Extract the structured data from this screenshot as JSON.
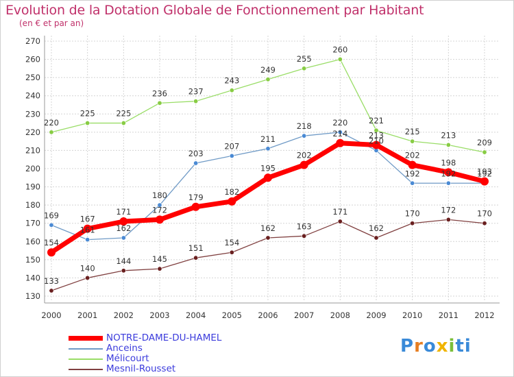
{
  "title": "Evolution de la Dotation Globale de Fonctionnement par Habitant",
  "subtitle": "(en € et par an)",
  "logo": "Proxiti",
  "colors": {
    "title": "#c0306a",
    "grid": "#d0d0d0",
    "axis_text": "#333333"
  },
  "chart_data": {
    "type": "line",
    "title": "Evolution de la Dotation Globale de Fonctionnement par Habitant",
    "subtitle": "(en € et par an)",
    "xlabel": "",
    "ylabel": "",
    "x": [
      "2000",
      "2001",
      "2002",
      "2003",
      "2004",
      "2005",
      "2006",
      "2007",
      "2008",
      "2009",
      "2010",
      "2011",
      "2012"
    ],
    "ylim": [
      130,
      270
    ],
    "yticks": [
      130,
      140,
      150,
      160,
      170,
      180,
      190,
      200,
      210,
      220,
      230,
      240,
      250,
      260,
      270
    ],
    "grid": true,
    "legend_position": "bottom-left",
    "series": [
      {
        "name": "NOTRE-DAME-DU-HAMEL",
        "color": "#ff0000",
        "width": 7,
        "marker": "#ff0000",
        "values": [
          154,
          167,
          171,
          172,
          179,
          182,
          195,
          202,
          214,
          213,
          202,
          198,
          193
        ]
      },
      {
        "name": "Anceins",
        "color": "#6f9ac6",
        "width": 1.3,
        "marker": "#4a8ad4",
        "values": [
          169,
          161,
          162,
          180,
          203,
          207,
          211,
          218,
          220,
          210,
          192,
          192,
          192
        ]
      },
      {
        "name": "Mélicourt",
        "color": "#99dd66",
        "width": 1.3,
        "marker": "#88cc44",
        "values": [
          220,
          225,
          225,
          236,
          237,
          243,
          249,
          255,
          260,
          221,
          215,
          213,
          209
        ]
      },
      {
        "name": "Mesnil-Rousset",
        "color": "#804040",
        "width": 1.3,
        "marker": "#6a2020",
        "values": [
          133,
          140,
          144,
          145,
          151,
          154,
          162,
          163,
          171,
          162,
          170,
          172,
          170
        ]
      }
    ]
  }
}
